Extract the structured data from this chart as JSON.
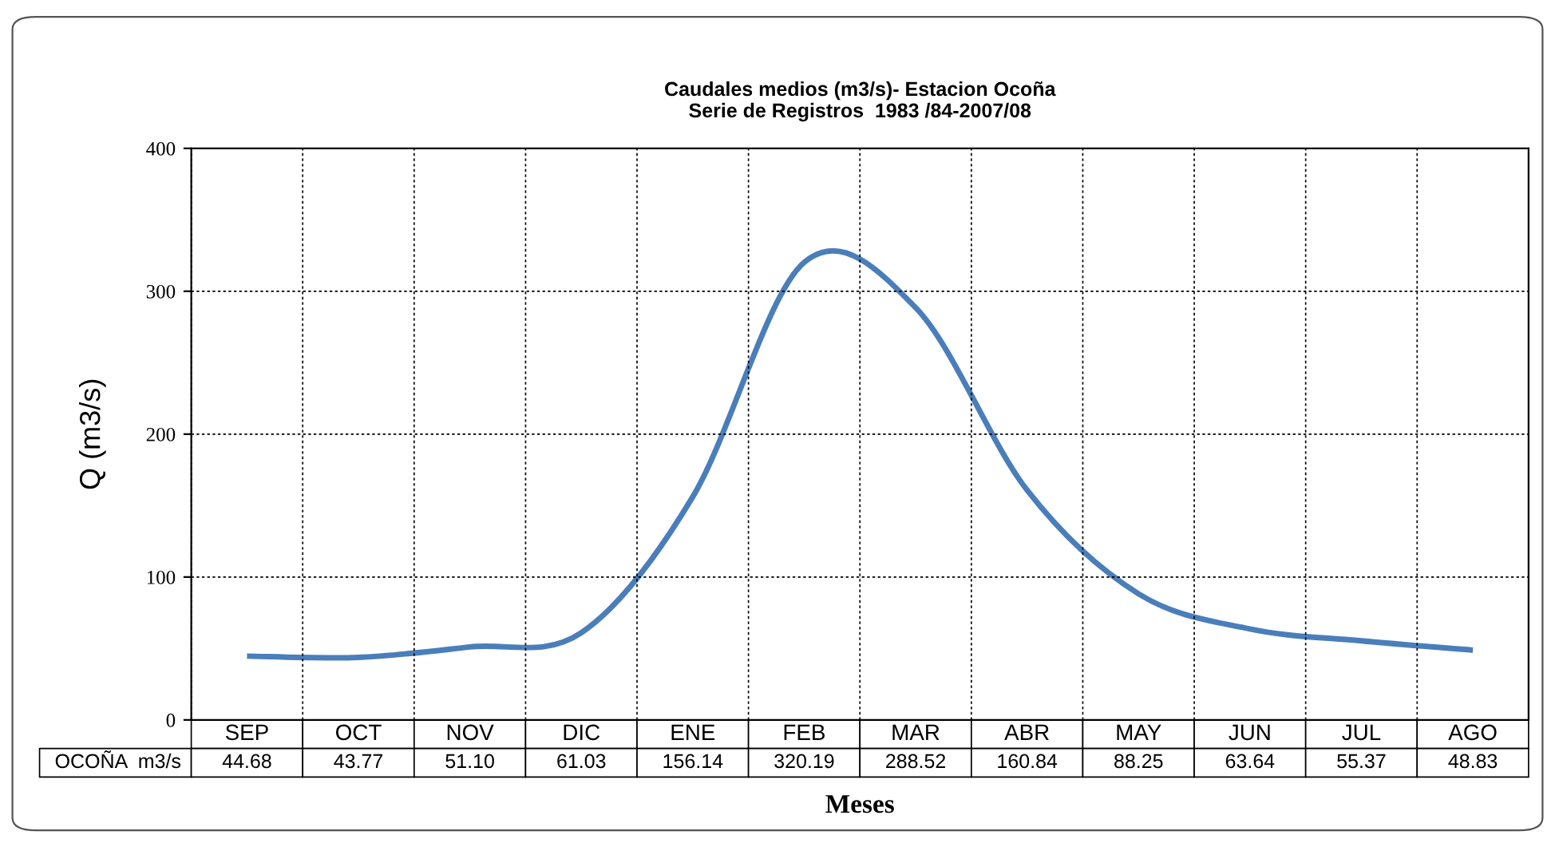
{
  "chart_data": {
    "type": "line",
    "title": "Caudales medios (m3/s)- Estacion Ocoña\nSerie de Registros  1983 /84-2007/08",
    "xlabel": "Meses",
    "ylabel": "Q (m3/s)",
    "categories": [
      "SEP",
      "OCT",
      "NOV",
      "DIC",
      "ENE",
      "FEB",
      "MAR",
      "ABR",
      "MAY",
      "JUN",
      "JUL",
      "AGO"
    ],
    "series": [
      {
        "name": "OCOÑA  m3/s",
        "color": "#4a7ebb",
        "values": [
          44.68,
          43.77,
          51.1,
          61.03,
          156.14,
          320.19,
          288.52,
          160.84,
          88.25,
          63.64,
          55.37,
          48.83
        ],
        "value_labels": [
          "44.68",
          "43.77",
          "51.10",
          "61.03",
          "156.14",
          "320.19",
          "288.52",
          "160.84",
          "88.25",
          "63.64",
          "55.37",
          "48.83"
        ]
      }
    ],
    "ylim": [
      0,
      400
    ],
    "yticks": [
      0,
      100,
      200,
      300,
      400
    ],
    "grid": true,
    "marker": "none",
    "line_style": "solid"
  }
}
